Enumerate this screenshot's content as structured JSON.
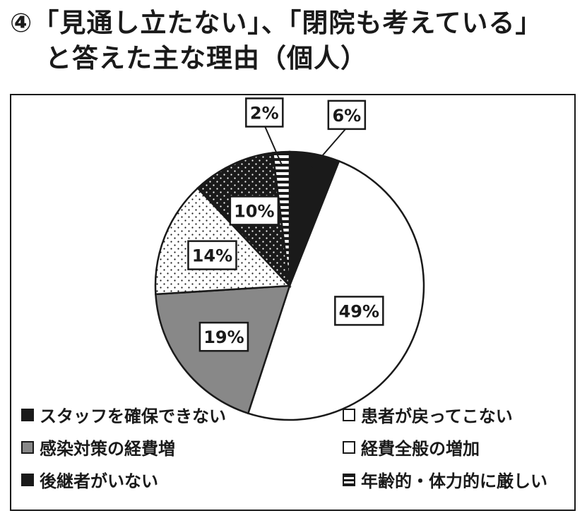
{
  "title": {
    "line1": "④「見通し立たない」、「閉院も考えている」",
    "line2": "と答えた主な理由（個人）"
  },
  "chart_data": {
    "type": "pie",
    "slices": [
      {
        "label": "スタッフを確保できない",
        "value": 6,
        "value_label": "6%",
        "pattern": "solid-black"
      },
      {
        "label": "患者が戻ってこない",
        "value": 49,
        "value_label": "49%",
        "pattern": "white"
      },
      {
        "label": "感染対策の経費増",
        "value": 19,
        "value_label": "19%",
        "pattern": "gray"
      },
      {
        "label": "経費全般の増加",
        "value": 14,
        "value_label": "14%",
        "pattern": "white-dotted"
      },
      {
        "label": "後継者がいない",
        "value": 10,
        "value_label": "10%",
        "pattern": "black-dotted"
      },
      {
        "label": "年齢的・体力的に厳しい",
        "value": 2,
        "value_label": "2%",
        "pattern": "horizontal-stripes"
      }
    ],
    "legend": [
      {
        "label": "スタッフを確保できない",
        "pattern": "solid-black"
      },
      {
        "label": "患者が戻ってこない",
        "pattern": "white"
      },
      {
        "label": "感染対策の経費増",
        "pattern": "gray"
      },
      {
        "label": "経費全般の増加",
        "pattern": "white-dotted"
      },
      {
        "label": "後継者がいない",
        "pattern": "black-dotted"
      },
      {
        "label": "年齢的・体力的に厳しい",
        "pattern": "horizontal-stripes"
      }
    ],
    "legend_placement": "bottom",
    "colors": {
      "black": "#1a1a1a",
      "gray": "#888888",
      "white": "#ffffff"
    }
  }
}
